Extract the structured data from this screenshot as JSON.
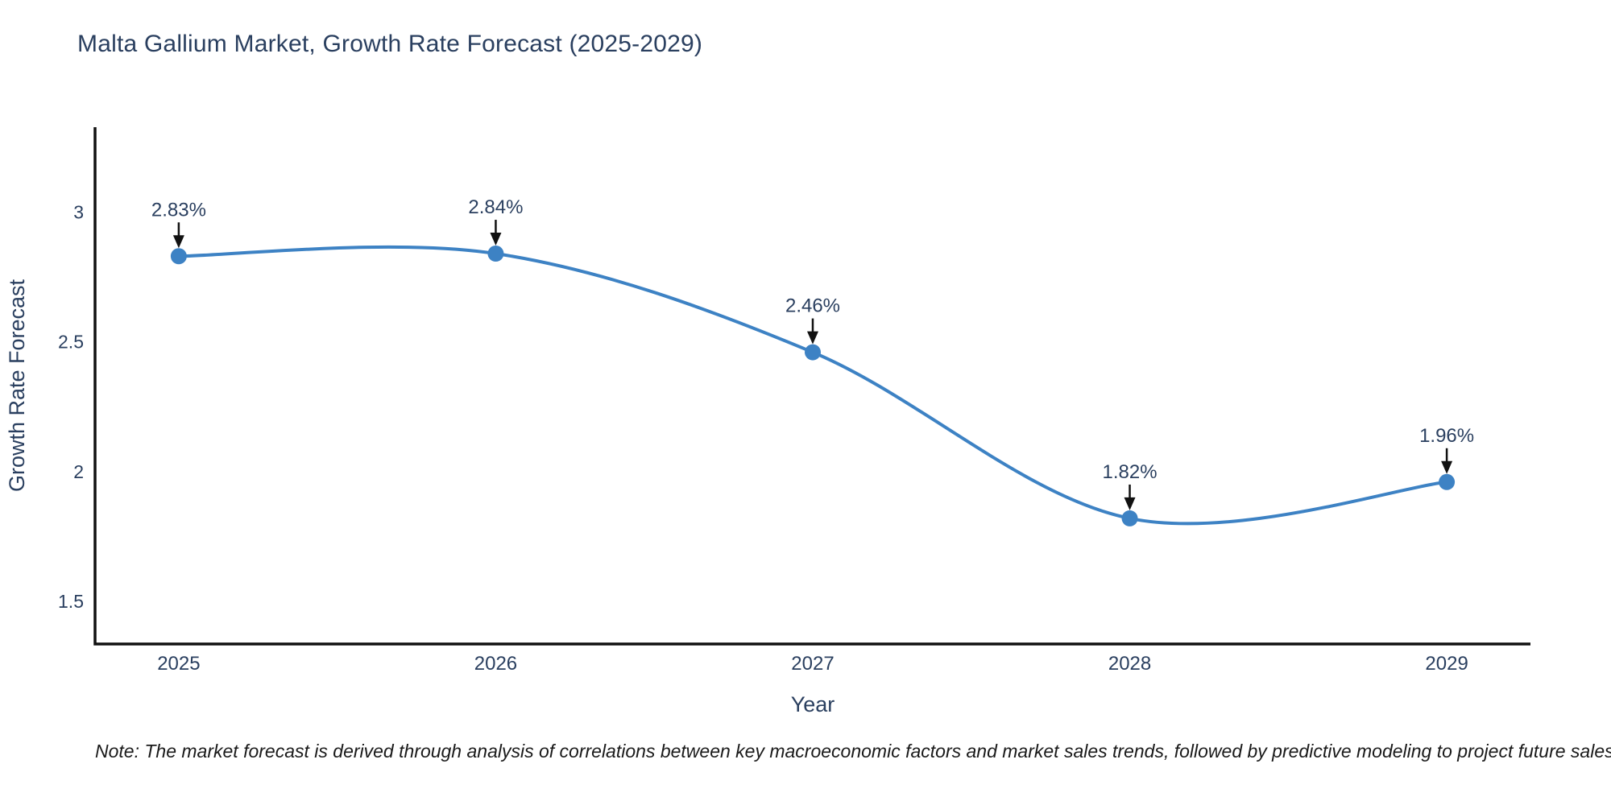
{
  "chart_data": {
    "type": "line",
    "title": "Malta Gallium Market, Growth Rate Forecast (2025-2029)",
    "xlabel": "Year",
    "ylabel": "Growth Rate Forecast",
    "categories": [
      2025,
      2026,
      2027,
      2028,
      2029
    ],
    "series": [
      {
        "name": "Growth Rate Forecast",
        "values": [
          2.83,
          2.84,
          2.46,
          1.82,
          1.96
        ]
      }
    ],
    "point_labels": [
      "2.83%",
      "2.84%",
      "2.46%",
      "1.82%",
      "1.96%"
    ],
    "yticks": [
      1.5,
      2,
      2.5,
      3
    ],
    "ytick_labels": [
      "1.5",
      "2",
      "2.5",
      "3"
    ],
    "xtick_labels": [
      "2025",
      "2026",
      "2027",
      "2028",
      "2029"
    ],
    "ylim": [
      1.336,
      3.327
    ],
    "xlim": [
      2024.736,
      2029.264
    ],
    "grid": false,
    "legend_position": "none",
    "curve": "spline",
    "markers": true,
    "line_color": "#3d82c4",
    "marker_color": "#3d82c4",
    "annotation_arrow_color": "#111111"
  },
  "note": {
    "text": "Note: The market forecast is derived through analysis of correlations between key macroeconomic factors and market sales trends, followed by predictive modeling to project future sales"
  },
  "colors": {
    "title": "#2a3f5f",
    "tick": "#2a3f5f",
    "axis_line": "#111111",
    "background": "#ffffff"
  }
}
